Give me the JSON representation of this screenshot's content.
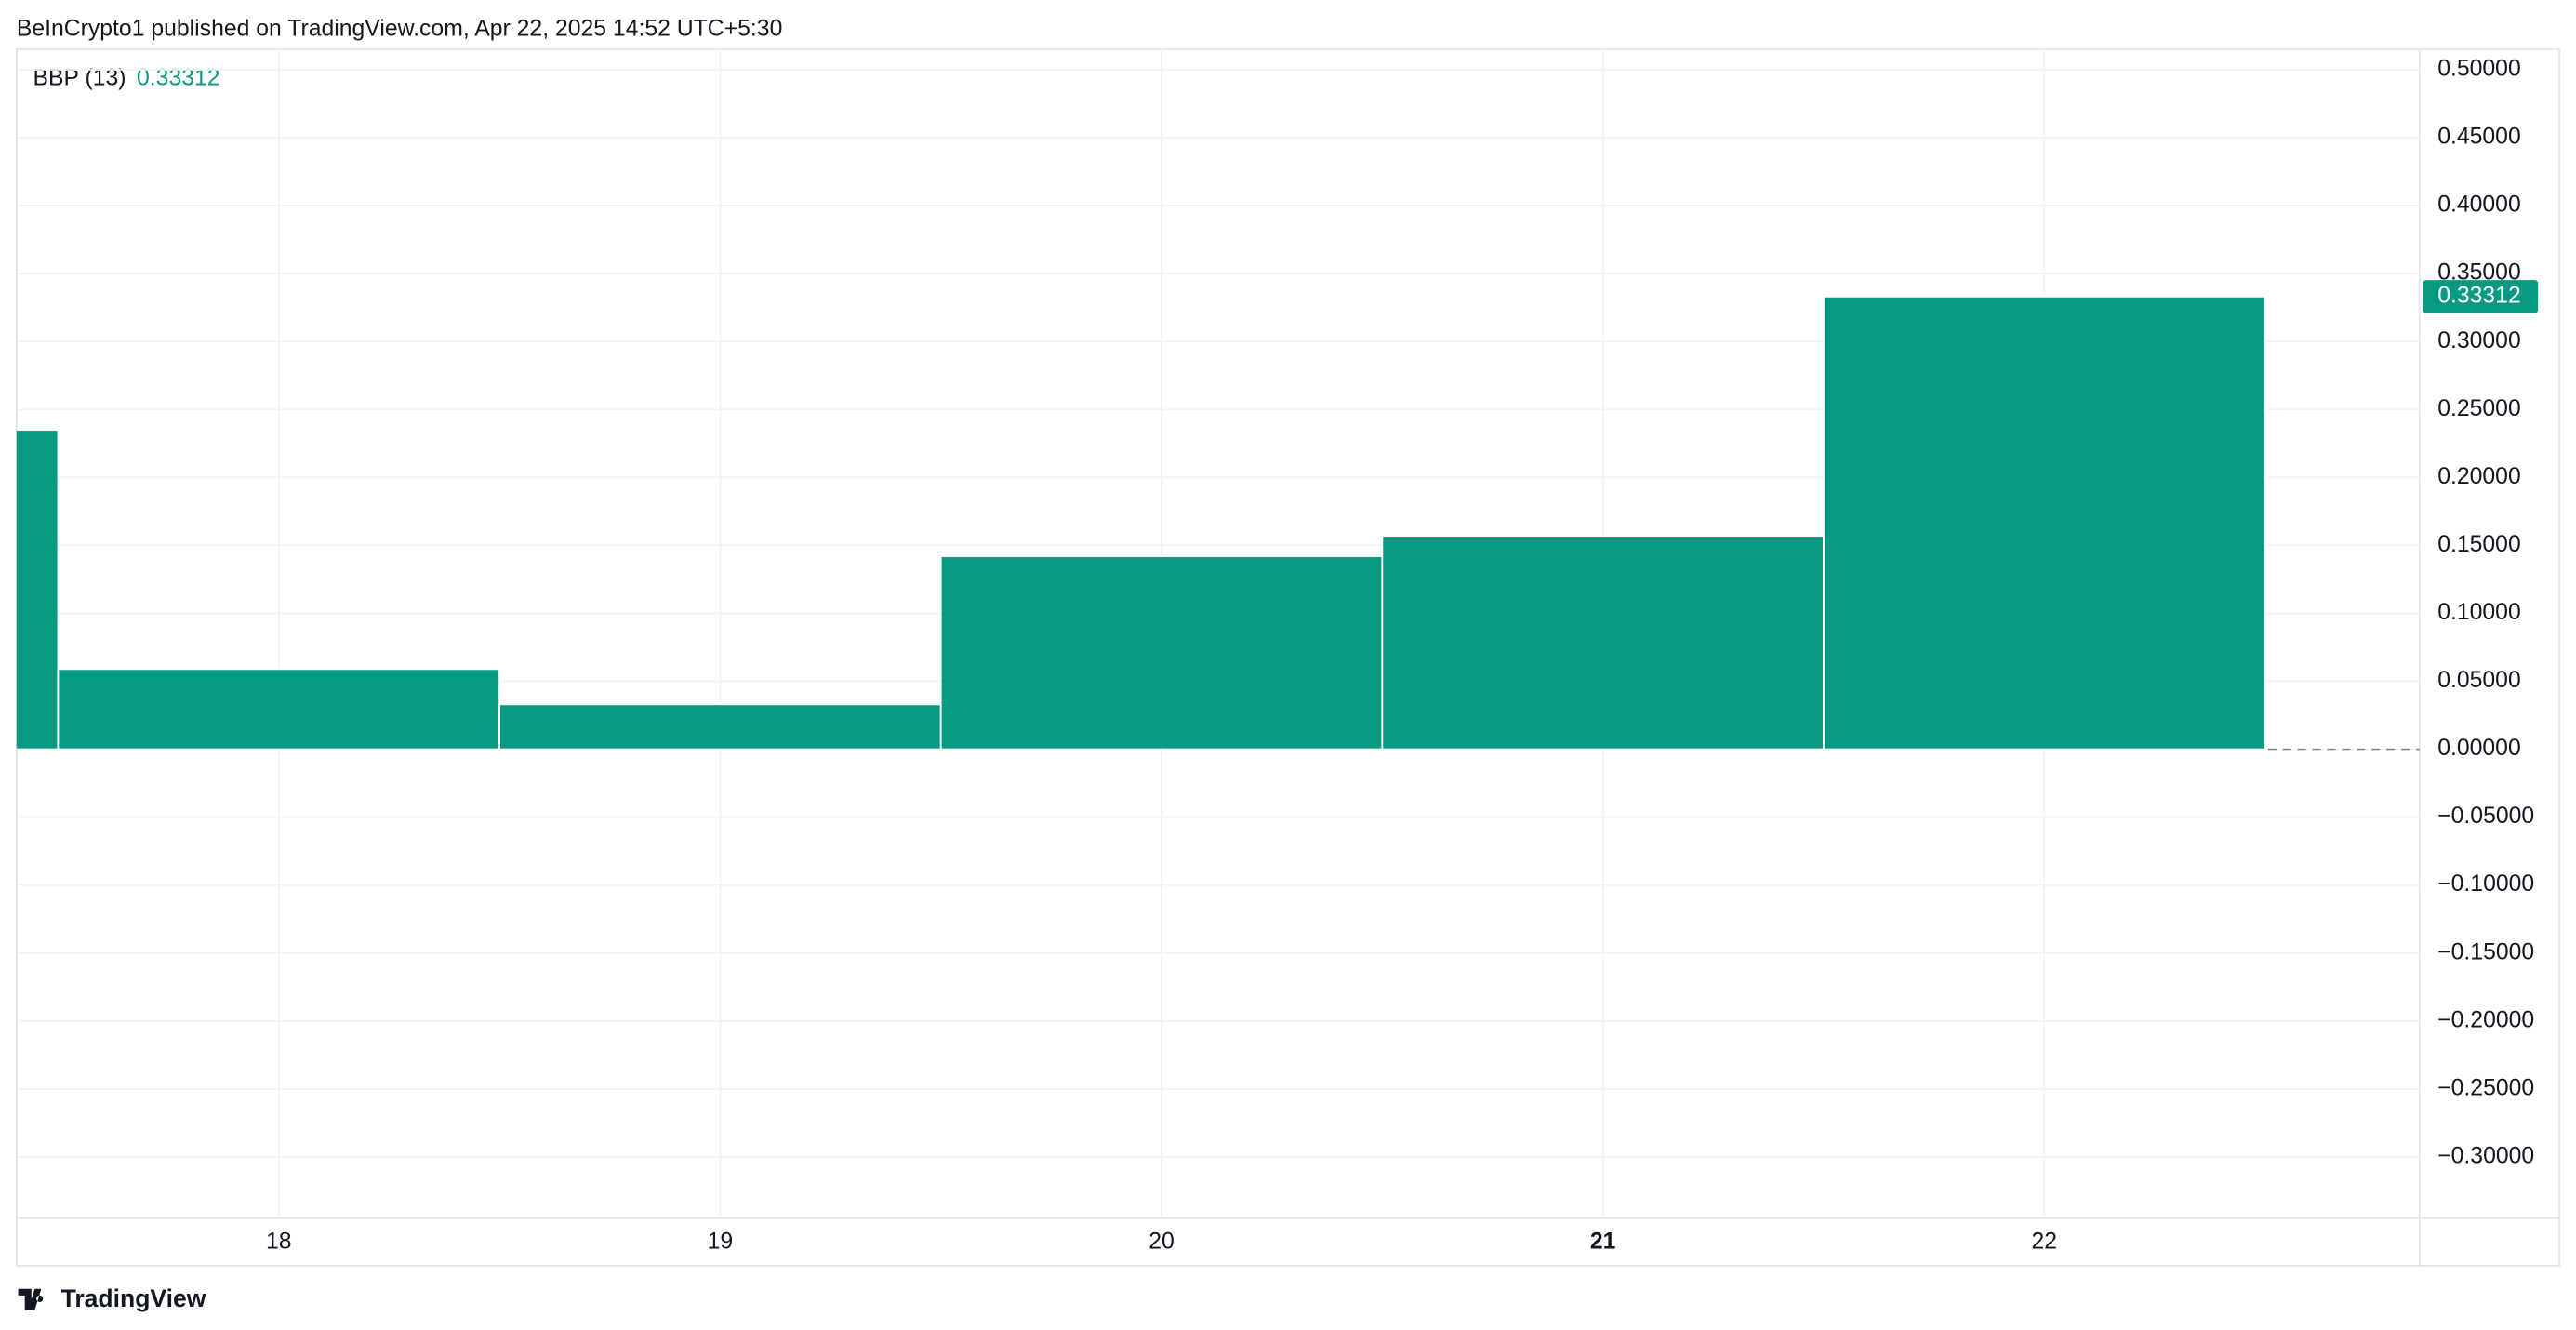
{
  "header": "BeInCrypto1 published on TradingView.com, Apr 22, 2025 14:52 UTC+5:30",
  "footer": "TradingView",
  "chart_data": {
    "type": "bar",
    "title": "BBP (13)",
    "color": "#089981",
    "grid": true,
    "x": [
      17,
      18,
      19,
      20,
      21,
      22
    ],
    "values": [
      0.235,
      0.059,
      0.033,
      0.142,
      0.157,
      0.33312
    ],
    "xlim": [
      17.406,
      22.85
    ],
    "xticks": [
      18,
      19,
      20,
      21,
      22
    ],
    "bold_xtick": 21,
    "ylim": [
      -0.345,
      0.515
    ],
    "yticks": [
      {
        "value": 0.5,
        "label": "0.50000"
      },
      {
        "value": 0.45,
        "label": "0.45000"
      },
      {
        "value": 0.4,
        "label": "0.40000"
      },
      {
        "value": 0.35,
        "label": "0.35000"
      },
      {
        "value": 0.3,
        "label": "0.30000"
      },
      {
        "value": 0.25,
        "label": "0.25000"
      },
      {
        "value": 0.2,
        "label": "0.20000"
      },
      {
        "value": 0.15,
        "label": "0.15000"
      },
      {
        "value": 0.1,
        "label": "0.10000"
      },
      {
        "value": 0.05,
        "label": "0.05000"
      },
      {
        "value": 0,
        "label": "0.00000"
      },
      {
        "value": -0.05,
        "label": "−0.05000"
      },
      {
        "value": -0.1,
        "label": "−0.10000"
      },
      {
        "value": -0.15,
        "label": "−0.15000"
      },
      {
        "value": -0.2,
        "label": "−0.20000"
      },
      {
        "value": -0.25,
        "label": "−0.25000"
      },
      {
        "value": -0.3,
        "label": "−0.30000"
      }
    ]
  }
}
